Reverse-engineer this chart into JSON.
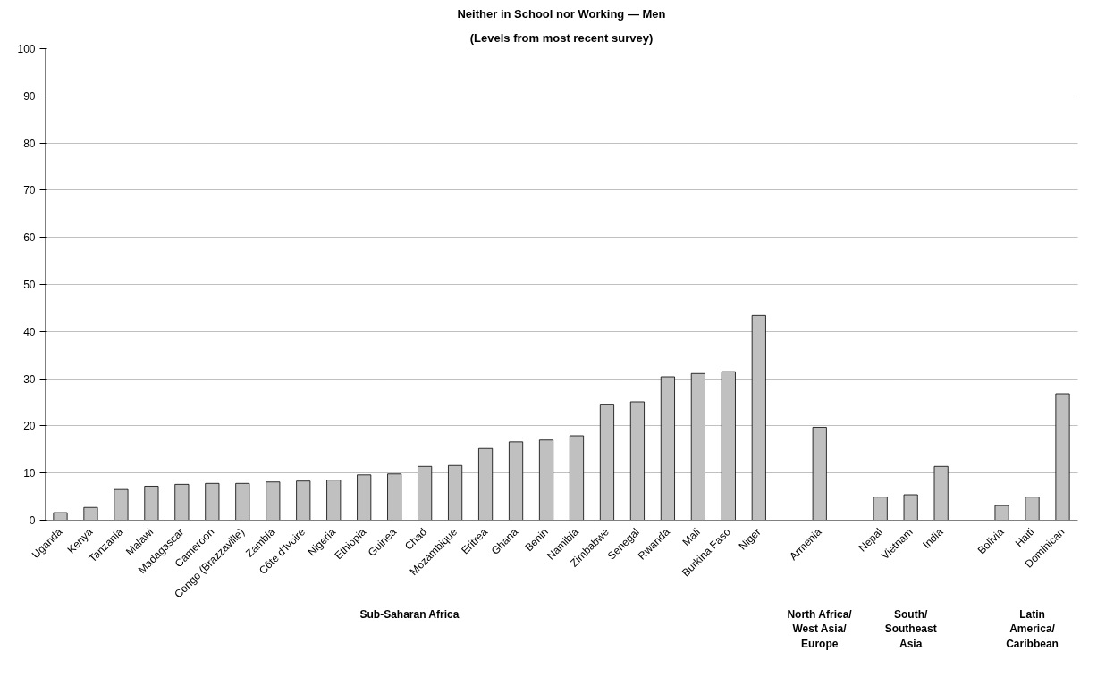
{
  "chart_data": {
    "type": "bar",
    "title": "Neither in School nor Working — Men",
    "subtitle": "(Levels from most recent survey)",
    "categories": [
      "Uganda",
      "Kenya",
      "Tanzania",
      "Malawi",
      "Madagascar",
      "Cameroon",
      "Congo (Brazzaville)",
      "Zambia",
      "Côte d'Ivoire",
      "Nigeria",
      "Ethiopia",
      "Guinea",
      "Chad",
      "Mozambique",
      "Eritrea",
      "Ghana",
      "Benin",
      "Namibia",
      "Zimbabwe",
      "Senegal",
      "Rwanda",
      "Mali",
      "Burkina Faso",
      "Niger",
      null,
      "Armenia",
      null,
      "Nepal",
      "Vietnam",
      "India",
      null,
      "Bolivia",
      "Haiti",
      "Dominican"
    ],
    "values": [
      1.6,
      2.7,
      6.5,
      7.2,
      7.6,
      7.8,
      7.8,
      8.1,
      8.3,
      8.5,
      9.6,
      9.8,
      11.4,
      11.6,
      15.2,
      16.6,
      17,
      17.9,
      24.6,
      25.1,
      30.4,
      31.1,
      31.5,
      43.4,
      null,
      19.7,
      null,
      4.9,
      5.4,
      11.4,
      null,
      3.1,
      4.9,
      26.8
    ],
    "color": "#c0c0c0",
    "ylim": [
      0,
      100
    ],
    "yticks": [
      0,
      10,
      20,
      30,
      40,
      50,
      60,
      70,
      80,
      90,
      100
    ],
    "grid": "y",
    "annotations": [
      "Sub-Saharan Africa",
      "North Africa/\nWest Asia/\nEurope",
      "South/\nSoutheast\nAsia",
      "Latin\nAmerica/\nCaribbean"
    ]
  }
}
